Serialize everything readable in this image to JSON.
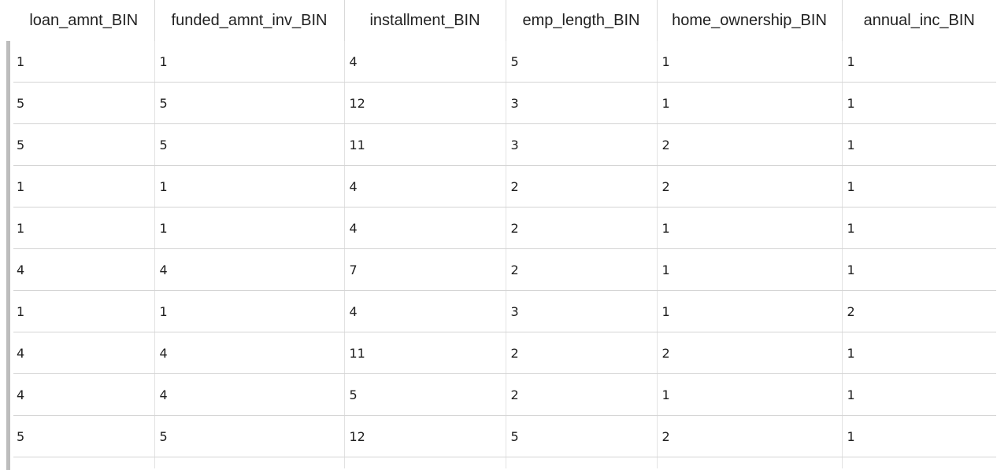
{
  "table": {
    "headers": [
      "loan_amnt_BIN",
      "funded_amnt_inv_BIN",
      "installment_BIN",
      "emp_length_BIN",
      "home_ownership_BIN",
      "annual_inc_BIN"
    ],
    "rows": [
      [
        "1",
        "1",
        "4",
        "5",
        "1",
        "1"
      ],
      [
        "5",
        "5",
        "12",
        "3",
        "1",
        "1"
      ],
      [
        "5",
        "5",
        "11",
        "3",
        "2",
        "1"
      ],
      [
        "1",
        "1",
        "4",
        "2",
        "2",
        "1"
      ],
      [
        "1",
        "1",
        "4",
        "2",
        "1",
        "1"
      ],
      [
        "4",
        "4",
        "7",
        "2",
        "1",
        "1"
      ],
      [
        "1",
        "1",
        "4",
        "3",
        "1",
        "2"
      ],
      [
        "4",
        "4",
        "11",
        "2",
        "2",
        "1"
      ],
      [
        "4",
        "4",
        "5",
        "2",
        "1",
        "1"
      ],
      [
        "5",
        "5",
        "12",
        "5",
        "2",
        "1"
      ]
    ]
  }
}
